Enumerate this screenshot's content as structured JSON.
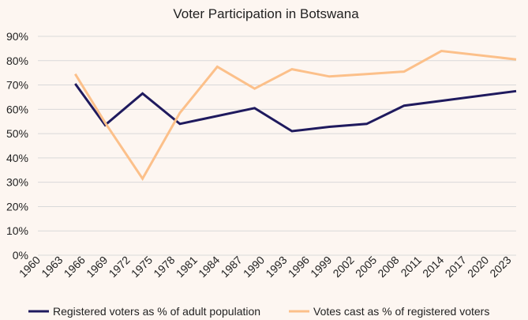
{
  "chart_data": {
    "type": "line",
    "title": "Voter Participation in Botswana",
    "xlabel": "",
    "ylabel": "",
    "ylim": [
      0,
      90
    ],
    "yticks": [
      0,
      10,
      20,
      30,
      40,
      50,
      60,
      70,
      80,
      90
    ],
    "ytick_format": "percent",
    "xlim": [
      1960,
      2024
    ],
    "xticks": [
      1960,
      1963,
      1966,
      1969,
      1972,
      1975,
      1978,
      1981,
      1984,
      1987,
      1990,
      1993,
      1996,
      1999,
      2002,
      2005,
      2008,
      2011,
      2014,
      2017,
      2020,
      2023
    ],
    "grid": "horizontal",
    "legend": "bottom",
    "series": [
      {
        "name": "Registered voters as % of adult population",
        "color": "#1f1a5e",
        "points": [
          [
            1965,
            70.5
          ],
          [
            1969,
            53.5
          ],
          [
            1974,
            66.5
          ],
          [
            1979,
            54
          ],
          [
            1989,
            60.5
          ],
          [
            1994,
            51
          ],
          [
            1999,
            52.8
          ],
          [
            2004,
            54
          ],
          [
            2009,
            61.5
          ],
          [
            2014,
            63.5
          ],
          [
            2024,
            67.5
          ]
        ]
      },
      {
        "name": "Votes cast as % of registered voters",
        "color": "#fcc08a",
        "points": [
          [
            1965,
            74.5
          ],
          [
            1969,
            54.5
          ],
          [
            1974,
            31.5
          ],
          [
            1979,
            58.5
          ],
          [
            1984,
            77.5
          ],
          [
            1989,
            68.5
          ],
          [
            1994,
            76.5
          ],
          [
            1999,
            73.5
          ],
          [
            2004,
            74.5
          ],
          [
            2009,
            75.5
          ],
          [
            2014,
            84
          ],
          [
            2024,
            80.5
          ]
        ]
      }
    ]
  }
}
